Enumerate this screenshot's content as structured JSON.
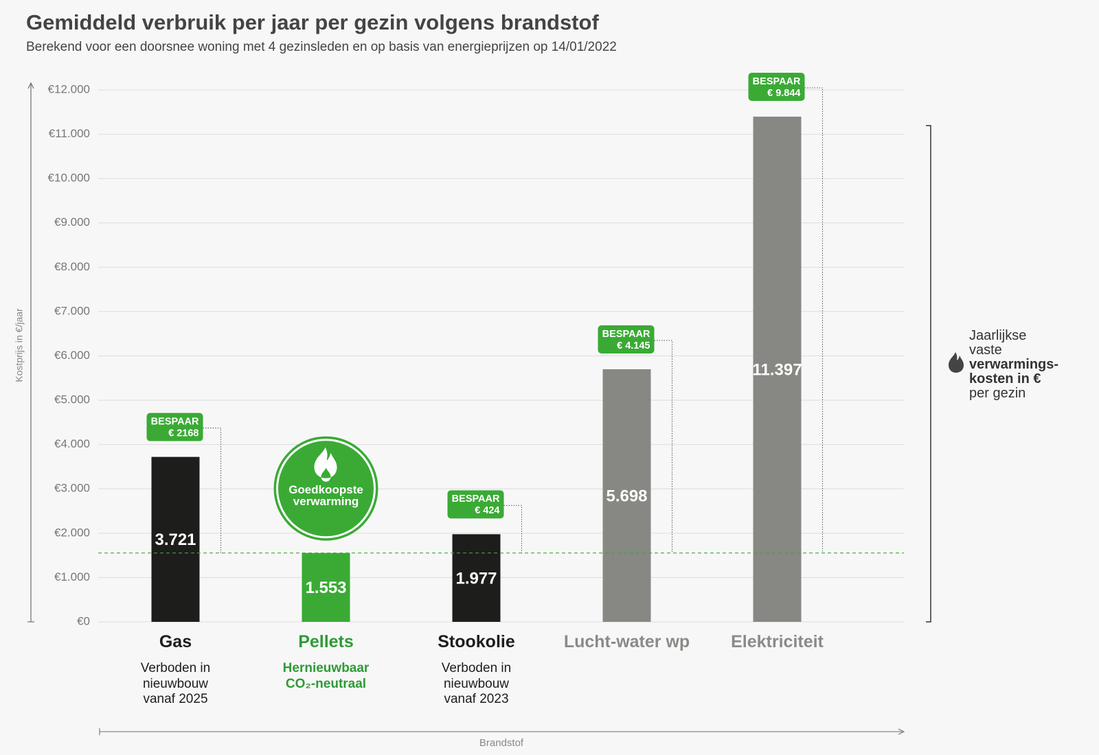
{
  "chart_data": {
    "type": "bar",
    "title": "Gemiddeld verbruik per jaar per gezin volgens brandstof",
    "subtitle": "Berekend voor een doorsnee woning met 4 gezinsleden en op basis van energieprijzen op 14/01/2022",
    "y_label": "Kostprijs in €/jaar",
    "x_label": "Brandstof",
    "categories": [
      "Gas",
      "Pellets",
      "Stookolie",
      "Lucht-water wp",
      "Elektriciteit"
    ],
    "values": [
      3721,
      1553,
      1977,
      5698,
      11397
    ],
    "value_labels": [
      "3.721",
      "1.553",
      "1.977",
      "5.698",
      "11.397"
    ],
    "colors": [
      "#1d1d1b",
      "#3aaa35",
      "#1d1d1b",
      "#878783",
      "#878783"
    ],
    "label_colors": [
      "#1d1d1b",
      "#2f9a37",
      "#1d1d1b",
      "#8a8a87",
      "#8a8a87"
    ],
    "notes": [
      [
        "Verboden in",
        "nieuwbouw",
        "vanaf 2025"
      ],
      [
        "Hernieuwbaar",
        "CO₂-neutraal"
      ],
      [
        "Verboden in",
        "nieuwbouw",
        "vanaf 2023"
      ],
      [],
      []
    ],
    "savings": {
      "label": "BESPAAR",
      "values": [
        2168,
        null,
        424,
        4145,
        9844
      ],
      "value_labels": [
        "€ 2168",
        null,
        "€ 424",
        "€ 4.145",
        "€ 9.844"
      ]
    },
    "badge": "Goedkoopste verwarming",
    "side_note": [
      "Jaarlijkse",
      "vaste",
      "verwarmings-",
      "kosten in €",
      "per gezin"
    ],
    "ylim": [
      0,
      12000
    ],
    "yticks": [
      {
        "value": 0,
        "label": "€0"
      },
      {
        "value": 1000,
        "label": "€1.000"
      },
      {
        "value": 2000,
        "label": "€2.000"
      },
      {
        "value": 3000,
        "label": "€3.000"
      },
      {
        "value": 4000,
        "label": "€4.000"
      },
      {
        "value": 5000,
        "label": "€5.000"
      },
      {
        "value": 6000,
        "label": "€6.000"
      },
      {
        "value": 7000,
        "label": "€7.000"
      },
      {
        "value": 8000,
        "label": "€8.000"
      },
      {
        "value": 9000,
        "label": "€9.000"
      },
      {
        "value": 10000,
        "label": "€10.000"
      },
      {
        "value": 11000,
        "label": "€11.000"
      },
      {
        "value": 12000,
        "label": "€12.000"
      }
    ],
    "grid": true
  }
}
